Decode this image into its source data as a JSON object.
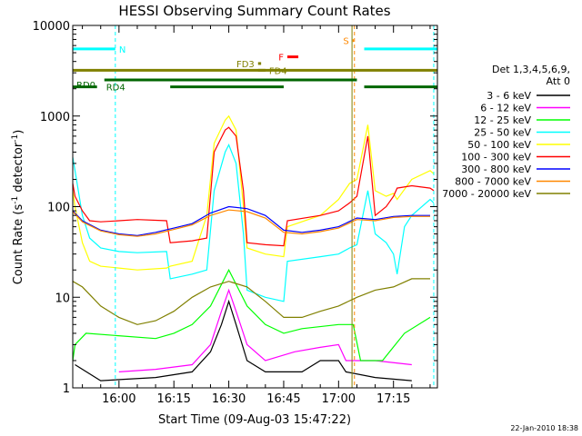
{
  "chart_data": {
    "type": "line",
    "title": "HESSI Observing Summary Count Rates",
    "xlabel": "Start Time (09-Aug-03 15:47:22)",
    "ylabel": "Count Rate (s⁻¹ detector⁻¹)",
    "ylabel_parts": [
      "Count Rate (s",
      "-1",
      " detector",
      "-1",
      ")"
    ],
    "yscale": "log",
    "ylim": [
      1,
      10000
    ],
    "yticks": [
      {
        "value": 1,
        "label": "1"
      },
      {
        "value": 10,
        "label": "10"
      },
      {
        "value": 100,
        "label": "100"
      },
      {
        "value": 1000,
        "label": "1000"
      },
      {
        "value": 10000,
        "label": "10000"
      }
    ],
    "xlim": [
      "15:47:22",
      "17:27:00"
    ],
    "xticks": [
      {
        "time": "16:00",
        "label": "16:00"
      },
      {
        "time": "16:15",
        "label": "16:15"
      },
      {
        "time": "16:30",
        "label": "16:30"
      },
      {
        "time": "16:45",
        "label": "16:45"
      },
      {
        "time": "17:00",
        "label": "17:00"
      },
      {
        "time": "17:15",
        "label": "17:15"
      }
    ],
    "legend": {
      "placement": "right",
      "header": [
        "Det 1,3,4,5,6,9,",
        "Att 0"
      ]
    },
    "series": [
      {
        "name": "3 - 6 keV",
        "color": "#000000",
        "points": [
          [
            "15:48",
            1.8
          ],
          [
            "15:55",
            1.2
          ],
          [
            "16:10",
            1.3
          ],
          [
            "16:20",
            1.5
          ],
          [
            "16:25",
            2.5
          ],
          [
            "16:28",
            5
          ],
          [
            "16:30",
            9
          ],
          [
            "16:32",
            5
          ],
          [
            "16:35",
            2
          ],
          [
            "16:40",
            1.5
          ],
          [
            "16:50",
            1.5
          ],
          [
            "16:55",
            2
          ],
          [
            "17:00",
            2
          ],
          [
            "17:02",
            1.5
          ],
          [
            "17:10",
            1.3
          ],
          [
            "17:20",
            1.2
          ]
        ]
      },
      {
        "name": "6 - 12 keV",
        "color": "#ff00ff",
        "points": [
          [
            "16:00",
            1.5
          ],
          [
            "16:10",
            1.6
          ],
          [
            "16:20",
            1.8
          ],
          [
            "16:25",
            3
          ],
          [
            "16:28",
            7
          ],
          [
            "16:30",
            12
          ],
          [
            "16:32",
            7
          ],
          [
            "16:35",
            3
          ],
          [
            "16:40",
            2
          ],
          [
            "16:48",
            2.5
          ],
          [
            "16:55",
            2.8
          ],
          [
            "17:00",
            3
          ],
          [
            "17:02",
            2
          ],
          [
            "17:10",
            2
          ],
          [
            "17:20",
            1.8
          ]
        ]
      },
      {
        "name": "12 - 25 keV",
        "color": "#00ff00",
        "points": [
          [
            "15:47:22",
            2
          ],
          [
            "15:48",
            3
          ],
          [
            "15:51",
            4
          ],
          [
            "16:10",
            3.5
          ],
          [
            "16:15",
            4
          ],
          [
            "16:20",
            5
          ],
          [
            "16:25",
            8
          ],
          [
            "16:30",
            20
          ],
          [
            "16:35",
            8
          ],
          [
            "16:40",
            5
          ],
          [
            "16:45",
            4
          ],
          [
            "16:50",
            4.5
          ],
          [
            "17:00",
            5
          ],
          [
            "17:04",
            5
          ],
          [
            "17:06",
            2
          ],
          [
            "17:12",
            2
          ],
          [
            "17:18",
            4
          ],
          [
            "17:25",
            6
          ]
        ]
      },
      {
        "name": "25 - 50 keV",
        "color": "#00ffff",
        "points": [
          [
            "15:47:22",
            350
          ],
          [
            "15:48",
            250
          ],
          [
            "15:50",
            80
          ],
          [
            "15:52",
            45
          ],
          [
            "15:55",
            35
          ],
          [
            "16:00",
            32
          ],
          [
            "16:05",
            31
          ],
          [
            "16:13",
            32
          ],
          [
            "16:14",
            16
          ],
          [
            "16:20",
            18
          ],
          [
            "16:24",
            20
          ],
          [
            "16:26",
            150
          ],
          [
            "16:29",
            400
          ],
          [
            "16:30",
            480
          ],
          [
            "16:32",
            300
          ],
          [
            "16:34",
            50
          ],
          [
            "16:35",
            12
          ],
          [
            "16:40",
            10
          ],
          [
            "16:45",
            9
          ],
          [
            "16:46",
            25
          ],
          [
            "16:55",
            28
          ],
          [
            "17:00",
            30
          ],
          [
            "17:03",
            35
          ],
          [
            "17:05",
            38
          ],
          [
            "17:08",
            150
          ],
          [
            "17:10",
            50
          ],
          [
            "17:13",
            40
          ],
          [
            "17:15",
            30
          ],
          [
            "17:16",
            18
          ],
          [
            "17:18",
            60
          ],
          [
            "17:20",
            80
          ],
          [
            "17:25",
            120
          ],
          [
            "17:26",
            110
          ]
        ]
      },
      {
        "name": "50 - 100 keV",
        "color": "#ffff00",
        "points": [
          [
            "15:47:22",
            150
          ],
          [
            "15:48",
            100
          ],
          [
            "15:50",
            40
          ],
          [
            "15:52",
            25
          ],
          [
            "15:55",
            22
          ],
          [
            "16:00",
            21
          ],
          [
            "16:05",
            20
          ],
          [
            "16:13",
            21
          ],
          [
            "16:14",
            22
          ],
          [
            "16:20",
            25
          ],
          [
            "16:24",
            80
          ],
          [
            "16:26",
            500
          ],
          [
            "16:29",
            900
          ],
          [
            "16:30",
            1000
          ],
          [
            "16:32",
            700
          ],
          [
            "16:34",
            100
          ],
          [
            "16:35",
            35
          ],
          [
            "16:40",
            30
          ],
          [
            "16:45",
            28
          ],
          [
            "16:46",
            60
          ],
          [
            "16:55",
            80
          ],
          [
            "17:00",
            120
          ],
          [
            "17:03",
            180
          ],
          [
            "17:05",
            200
          ],
          [
            "17:08",
            800
          ],
          [
            "17:10",
            150
          ],
          [
            "17:13",
            130
          ],
          [
            "17:15",
            140
          ],
          [
            "17:16",
            120
          ],
          [
            "17:20",
            200
          ],
          [
            "17:25",
            250
          ],
          [
            "17:26",
            230
          ]
        ]
      },
      {
        "name": "100 - 300 keV",
        "color": "#ff0000",
        "points": [
          [
            "15:47:22",
            180
          ],
          [
            "15:48",
            130
          ],
          [
            "15:50",
            90
          ],
          [
            "15:52",
            70
          ],
          [
            "15:55",
            68
          ],
          [
            "16:00",
            70
          ],
          [
            "16:05",
            72
          ],
          [
            "16:13",
            70
          ],
          [
            "16:14",
            40
          ],
          [
            "16:20",
            42
          ],
          [
            "16:24",
            45
          ],
          [
            "16:26",
            400
          ],
          [
            "16:29",
            700
          ],
          [
            "16:30",
            750
          ],
          [
            "16:32",
            600
          ],
          [
            "16:34",
            150
          ],
          [
            "16:35",
            40
          ],
          [
            "16:40",
            38
          ],
          [
            "16:45",
            37
          ],
          [
            "16:46",
            70
          ],
          [
            "16:55",
            80
          ],
          [
            "17:00",
            90
          ],
          [
            "17:03",
            110
          ],
          [
            "17:05",
            130
          ],
          [
            "17:08",
            600
          ],
          [
            "17:10",
            80
          ],
          [
            "17:13",
            100
          ],
          [
            "17:15",
            130
          ],
          [
            "17:16",
            160
          ],
          [
            "17:20",
            170
          ],
          [
            "17:25",
            160
          ],
          [
            "17:26",
            150
          ]
        ]
      },
      {
        "name": "300 - 800 keV",
        "color": "#0000ff",
        "points": [
          [
            "15:47:22",
            90
          ],
          [
            "15:50",
            70
          ],
          [
            "15:55",
            55
          ],
          [
            "16:00",
            50
          ],
          [
            "16:05",
            48
          ],
          [
            "16:10",
            52
          ],
          [
            "16:15",
            58
          ],
          [
            "16:20",
            65
          ],
          [
            "16:25",
            85
          ],
          [
            "16:30",
            100
          ],
          [
            "16:35",
            95
          ],
          [
            "16:40",
            80
          ],
          [
            "16:45",
            55
          ],
          [
            "16:50",
            52
          ],
          [
            "16:55",
            55
          ],
          [
            "17:00",
            60
          ],
          [
            "17:05",
            75
          ],
          [
            "17:10",
            72
          ],
          [
            "17:15",
            78
          ],
          [
            "17:20",
            80
          ],
          [
            "17:25",
            80
          ]
        ]
      },
      {
        "name": "800 - 7000 keV",
        "color": "#ff8800",
        "points": [
          [
            "15:47:22",
            88
          ],
          [
            "15:50",
            68
          ],
          [
            "15:55",
            54
          ],
          [
            "16:00",
            49
          ],
          [
            "16:05",
            47
          ],
          [
            "16:10",
            50
          ],
          [
            "16:15",
            56
          ],
          [
            "16:20",
            63
          ],
          [
            "16:25",
            80
          ],
          [
            "16:30",
            92
          ],
          [
            "16:35",
            88
          ],
          [
            "16:40",
            75
          ],
          [
            "16:45",
            52
          ],
          [
            "16:50",
            50
          ],
          [
            "16:55",
            53
          ],
          [
            "17:00",
            58
          ],
          [
            "17:05",
            72
          ],
          [
            "17:10",
            70
          ],
          [
            "17:15",
            76
          ],
          [
            "17:20",
            78
          ],
          [
            "17:25",
            78
          ]
        ]
      },
      {
        "name": "7000 - 20000 keV",
        "color": "#808000",
        "points": [
          [
            "15:47:22",
            15
          ],
          [
            "15:50",
            13
          ],
          [
            "15:55",
            8
          ],
          [
            "16:00",
            6
          ],
          [
            "16:05",
            5
          ],
          [
            "16:10",
            5.5
          ],
          [
            "16:15",
            7
          ],
          [
            "16:20",
            10
          ],
          [
            "16:25",
            13
          ],
          [
            "16:30",
            15
          ],
          [
            "16:35",
            13
          ],
          [
            "16:40",
            9
          ],
          [
            "16:45",
            6
          ],
          [
            "16:50",
            6
          ],
          [
            "16:55",
            7
          ],
          [
            "17:00",
            8
          ],
          [
            "17:05",
            10
          ],
          [
            "17:10",
            12
          ],
          [
            "17:15",
            13
          ],
          [
            "17:20",
            16
          ],
          [
            "17:25",
            16
          ]
        ]
      }
    ],
    "bars": [
      {
        "label": "N",
        "color": "#00ffff",
        "level": 5500,
        "start": "15:47:22",
        "end": "15:59:00",
        "dashed_end": true
      },
      {
        "label": "",
        "color": "#00ffff",
        "level": 5500,
        "start": "17:07:00",
        "end": "17:27:00",
        "dashed_end": false
      },
      {
        "label": "RD0",
        "color": "#006600",
        "level": 2500,
        "start": "15:56:00",
        "end": "17:05:00",
        "dashed_end": false
      },
      {
        "label": "",
        "color": "#808000",
        "level": 3200,
        "start": "15:47:22",
        "end": "17:27:00",
        "dashed_end": false
      },
      {
        "label": "RD4",
        "color": "#006600",
        "level": 2100,
        "start": "15:47:22",
        "end": "15:54:00",
        "dashed_end": false
      },
      {
        "label": "",
        "color": "#006600",
        "level": 2100,
        "start": "16:14:00",
        "end": "16:45:00",
        "dashed_end": false
      },
      {
        "label": "",
        "color": "#006600",
        "level": 2100,
        "start": "17:07:00",
        "end": "17:27:00",
        "dashed_end": false
      },
      {
        "label": "FD3",
        "color": "#808000",
        "level": 3800,
        "start": "16:38:00",
        "end": "16:38:50",
        "dashed_end": false
      },
      {
        "label": "FD4",
        "color": "#808000",
        "level": 3200,
        "start": "16:38:00",
        "end": "16:40:00",
        "dashed_end": false
      },
      {
        "label": "F",
        "color": "#ff0000",
        "level": 4500,
        "start": "16:46:00",
        "end": "16:49:00",
        "dashed_end": false
      },
      {
        "label": "S",
        "color": "#ff8800",
        "level": 6800,
        "start": "17:03:50",
        "end": "17:04:10",
        "dashed_end": false
      }
    ],
    "vlines": [
      {
        "time": "15:59:00",
        "color": "#00ffff",
        "style": "dashed"
      },
      {
        "time": "17:03:40",
        "color": "#808000",
        "style": "solid"
      },
      {
        "time": "17:04:20",
        "color": "#ff8800",
        "style": "dashed"
      },
      {
        "time": "17:26:00",
        "color": "#00ffff",
        "style": "dashed"
      }
    ],
    "grid": false
  },
  "footer_timestamp": "22-Jan-2010 18:38"
}
